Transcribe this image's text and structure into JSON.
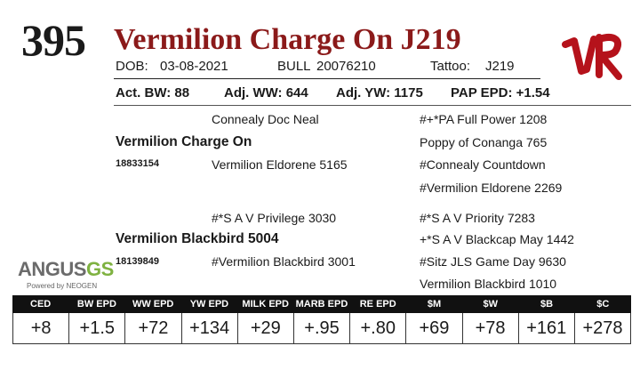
{
  "lot_number": "395",
  "animal_name": "Vermilion Charge On J219",
  "identity": {
    "dob_label": "DOB:",
    "dob": "03-08-2021",
    "sex_label": "BULL",
    "registration": "20076210",
    "tattoo_label": "Tattoo:",
    "tattoo": "J219"
  },
  "weights": {
    "act_bw": "Act. BW: 88",
    "adj_ww": "Adj. WW: 644",
    "adj_yw": "Adj. YW: 1175",
    "pap_epd": "PAP EPD: +1.54"
  },
  "pedigree": {
    "sire": {
      "name": "Vermilion Charge On",
      "registration": "18833154",
      "sire": "Connealy Doc Neal",
      "dam": "Vermilion Eldorene 5165",
      "sire_sire": "#+*PA Full Power 1208",
      "sire_dam": "Poppy of Conanga 765",
      "dam_sire": "#Connealy Countdown",
      "dam_dam": "#Vermilion Eldorene 2269"
    },
    "dam": {
      "name": "Vermilion Blackbird 5004",
      "registration": "18139849",
      "sire": "#*S A V Privilege 3030",
      "dam": "#Vermilion Blackbird 3001",
      "sire_sire": "#*S A V Priority 7283",
      "sire_dam": "+*S A V Blackcap May 1442",
      "dam_sire": "#Sitz JLS Game Day 9630",
      "dam_dam": "Vermilion Blackbird 1010"
    }
  },
  "logo": {
    "text_main": "ANGUS",
    "text_accent": "GS",
    "subtitle": "Powered by NEOGEN"
  },
  "brand_icon": "vr-brand-icon",
  "colors": {
    "name_red": "#8b1a1a",
    "brand_red": "#b5121b",
    "header_black": "#111111",
    "logo_green": "#7fb241"
  },
  "epds": {
    "headers": [
      "CED",
      "BW EPD",
      "WW EPD",
      "YW EPD",
      "MILK EPD",
      "MARB EPD",
      "RE EPD",
      "$M",
      "$W",
      "$B",
      "$C"
    ],
    "values": [
      "+8",
      "+1.5",
      "+72",
      "+134",
      "+29",
      "+.95",
      "+.80",
      "+69",
      "+78",
      "+161",
      "+278"
    ]
  }
}
